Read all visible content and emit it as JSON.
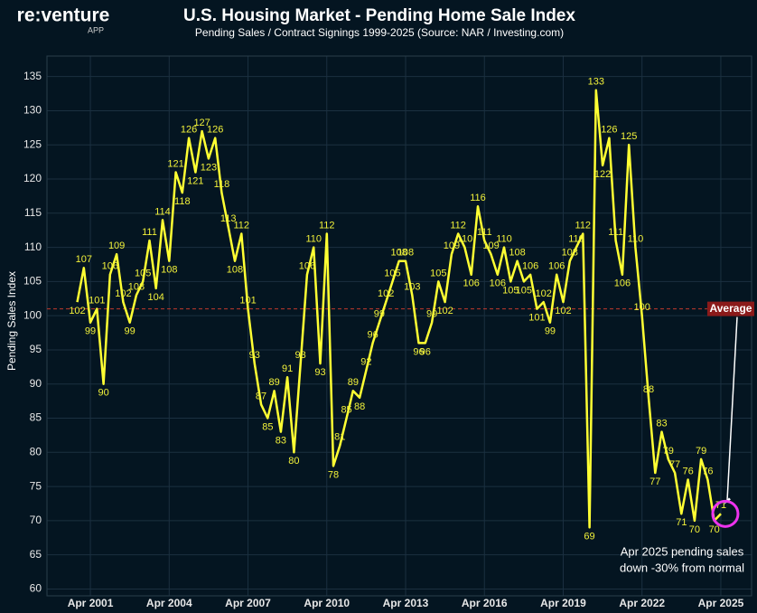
{
  "chart_data": {
    "type": "line",
    "logo": "re:venture",
    "logo_sub": "APP",
    "title": "U.S. Housing Market - Pending Home Sale Index",
    "subtitle": "Pending Sales / Contract Signings 1999-2025 (Source: NAR / Investing.com)",
    "y_label": "Pending Sales Index",
    "color": "#ffff33",
    "x": [
      "Oct 2000",
      "Jan 2001",
      "Apr 2001",
      "Jul 2001",
      "Oct 2001",
      "Jan 2002",
      "Apr 2002",
      "Jul 2002",
      "Oct 2002",
      "Jan 2003",
      "Apr 2003",
      "Jul 2003",
      "Oct 2003",
      "Jan 2004",
      "Apr 2004",
      "Jul 2004",
      "Oct 2004",
      "Jan 2005",
      "Apr 2005",
      "Jul 2005",
      "Oct 2005",
      "Jan 2006",
      "Apr 2006",
      "Jul 2006",
      "Oct 2006",
      "Jan 2007",
      "Apr 2007",
      "Jul 2007",
      "Oct 2007",
      "Jan 2008",
      "Apr 2008",
      "Jul 2008",
      "Oct 2008",
      "Jan 2009",
      "Apr 2009",
      "Jul 2009",
      "Oct 2009",
      "Jan 2010",
      "Apr 2010",
      "Jul 2010",
      "Oct 2010",
      "Jan 2011",
      "Apr 2011",
      "Jul 2011",
      "Oct 2011",
      "Jan 2012",
      "Apr 2012",
      "Jul 2012",
      "Oct 2012",
      "Jan 2013",
      "Apr 2013",
      "Jul 2013",
      "Oct 2013",
      "Jan 2014",
      "Apr 2014",
      "Jul 2014",
      "Oct 2014",
      "Jan 2015",
      "Apr 2015",
      "Jul 2015",
      "Oct 2015",
      "Jan 2016",
      "Apr 2016",
      "Jul 2016",
      "Oct 2016",
      "Jan 2017",
      "Apr 2017",
      "Jul 2017",
      "Oct 2017",
      "Jan 2018",
      "Apr 2018",
      "Jul 2018",
      "Oct 2018",
      "Jan 2019",
      "Apr 2019",
      "Jul 2019",
      "Oct 2019",
      "Jan 2020",
      "Apr 2020",
      "Jul 2020",
      "Oct 2020",
      "Jan 2021",
      "Apr 2021",
      "Jul 2021",
      "Oct 2021",
      "Jan 2022",
      "Apr 2022",
      "Jul 2022",
      "Oct 2022",
      "Jan 2023",
      "Apr 2023",
      "Jul 2023",
      "Oct 2023",
      "Jan 2024",
      "Apr 2024",
      "Jul 2024",
      "Oct 2024",
      "Jan 2025",
      "Apr 2025"
    ],
    "values": [
      102,
      107,
      99,
      101,
      90,
      106,
      109,
      102,
      99,
      103,
      105,
      111,
      104,
      114,
      108,
      121,
      118,
      126,
      121,
      127,
      123,
      126,
      118,
      113,
      108,
      112,
      101,
      93,
      87,
      85,
      89,
      83,
      91,
      80,
      93,
      106,
      110,
      93,
      112,
      78,
      81,
      85,
      89,
      88,
      92,
      96,
      99,
      102,
      105,
      108,
      108,
      103,
      96,
      96,
      99,
      105,
      102,
      109,
      112,
      110,
      106,
      116,
      111,
      109,
      106,
      110,
      105,
      108,
      105,
      106,
      101,
      102,
      99,
      106,
      102,
      108,
      110,
      112,
      69,
      133,
      122,
      126,
      111,
      106,
      125,
      110,
      100,
      88,
      77,
      83,
      79,
      77,
      71,
      76,
      70,
      79,
      76,
      70,
      71
    ],
    "xticks": [
      "Apr 2001",
      "Apr 2004",
      "Apr 2007",
      "Apr 2010",
      "Apr 2013",
      "Apr 2016",
      "Apr 2019",
      "Apr 2022",
      "Apr 2025"
    ],
    "ylim": [
      59,
      138
    ],
    "yticks": [
      60,
      65,
      70,
      75,
      80,
      85,
      90,
      95,
      100,
      105,
      110,
      115,
      120,
      125,
      130,
      135
    ],
    "grid": true,
    "average": {
      "label": "Average",
      "value": 101
    },
    "annotation": [
      "Apr 2025 pending sales",
      "down -30% from normal"
    ]
  }
}
